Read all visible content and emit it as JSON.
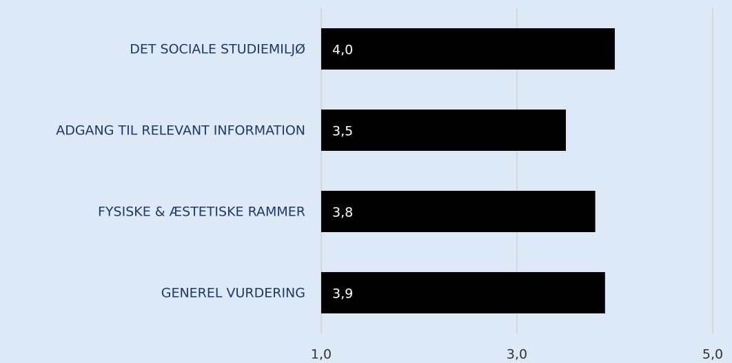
{
  "chart_data": {
    "type": "bar",
    "orientation": "horizontal",
    "categories": [
      "DET SOCIALE STUDIEMILJØ",
      "ADGANG TIL RELEVANT INFORMATION",
      "FYSISKE & ÆSTETISKE RAMMER",
      "GENEREL VURDERING"
    ],
    "values": [
      4.0,
      3.5,
      3.8,
      3.9
    ],
    "value_labels": [
      "4,0",
      "3,5",
      "3,8",
      "3,9"
    ],
    "color": "#000000",
    "xlim": [
      1,
      5
    ],
    "xticks": [
      {
        "value": 1,
        "label": "1,0"
      },
      {
        "value": 3,
        "label": "3,0"
      },
      {
        "value": 5,
        "label": "5,0"
      }
    ],
    "grid": true
  }
}
